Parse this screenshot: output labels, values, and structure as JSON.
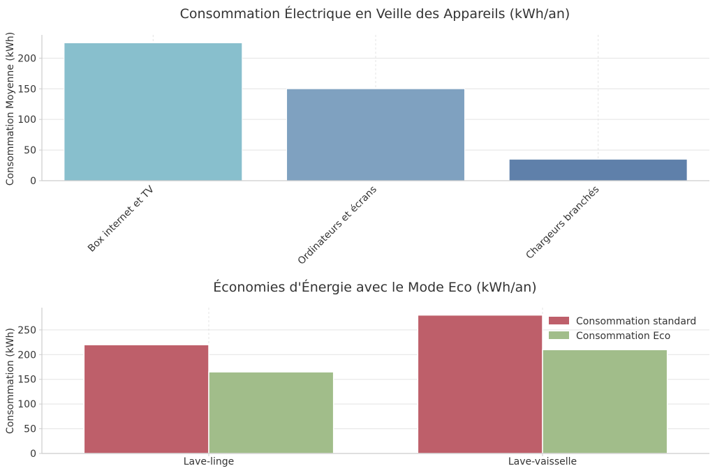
{
  "chart_data": [
    {
      "type": "bar",
      "title": "Consommation Électrique en Veille des Appareils (kWh/an)",
      "xlabel": "",
      "ylabel": "Consommation Moyenne (kWh)",
      "categories": [
        "Box internet et TV",
        "Ordinateurs et écrans",
        "Chargeurs branchés"
      ],
      "values": [
        225,
        150,
        35
      ],
      "colors": [
        "#88bfcd",
        "#7fa1c0",
        "#5f80aa"
      ],
      "ylim": [
        0,
        238
      ],
      "yticks": [
        0,
        50,
        100,
        150,
        200
      ],
      "grid": true,
      "category_labels_rotated": true
    },
    {
      "type": "bar",
      "title": "Économies d'Énergie avec le Mode Eco (kWh/an)",
      "xlabel": "",
      "ylabel": "Consommation (kWh)",
      "categories": [
        "Lave-linge",
        "Lave-vaisselle"
      ],
      "series": [
        {
          "name": "Consommation standard",
          "values": [
            220,
            280
          ],
          "color": "#be5f6a"
        },
        {
          "name": "Consommation Eco",
          "values": [
            165,
            210
          ],
          "color": "#a1bd8a"
        }
      ],
      "ylim": [
        0,
        295
      ],
      "yticks": [
        0,
        50,
        100,
        150,
        200,
        250
      ],
      "grid": true,
      "legend": "top-right"
    }
  ]
}
